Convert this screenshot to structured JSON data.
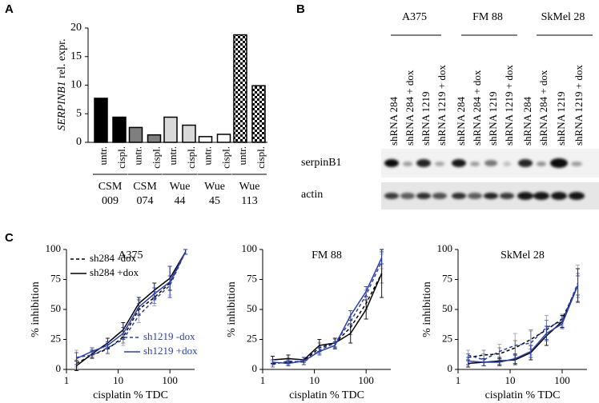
{
  "panel_labels": [
    "A",
    "B",
    "C"
  ],
  "chart_data": [
    {
      "type": "bar",
      "ylabel": {
        "gene": "SERPINB1",
        "text": "rel. expr."
      },
      "categories": [
        "untr.",
        "cispl.",
        "untr.",
        "cispl.",
        "untr.",
        "cispl.",
        "untr.",
        "cispl.",
        "untr.",
        "cispl."
      ],
      "values": [
        7.7,
        4.4,
        2.6,
        1.3,
        4.4,
        3.0,
        1.0,
        1.4,
        18.8,
        9.9
      ],
      "colors": [
        "#000000",
        "#000000",
        "#7f7f7f",
        "#7f7f7f",
        "#d9d9d9",
        "#d9d9d9",
        "#ffffff",
        "#ffffff",
        "checker",
        "checker"
      ],
      "groups": [
        [
          "CSM",
          "009"
        ],
        [
          "CSM",
          "074"
        ],
        [
          "Wue",
          "44"
        ],
        [
          "Wue",
          "45"
        ],
        [
          "Wue",
          "113"
        ]
      ],
      "ylim": [
        0,
        20
      ],
      "yticks": [
        0,
        5,
        10,
        15,
        20
      ]
    },
    {
      "type": "line",
      "title": "A375",
      "xlabel": "cisplatin % TDC",
      "ylabel": "% inhibition",
      "xscale": "log",
      "xlim": [
        1,
        300
      ],
      "xticks": [
        1,
        10,
        100
      ],
      "ylim": [
        0,
        100
      ],
      "yticks": [
        0,
        25,
        50,
        75,
        100
      ],
      "x": [
        1.56,
        3.125,
        6.25,
        12.5,
        25,
        50,
        100,
        200
      ],
      "series": [
        {
          "name": "sh284 -dox",
          "color": "#000000",
          "linestyle": "dashed",
          "legend": "upper left",
          "values": [
            5,
            12,
            17,
            27,
            50,
            60,
            72,
            98
          ],
          "errors": [
            3,
            3,
            4,
            5,
            5,
            5,
            6,
            2
          ]
        },
        {
          "name": "sh284 +dox",
          "color": "#000000",
          "linestyle": "solid",
          "legend": "upper left",
          "values": [
            3,
            13,
            22,
            33,
            55,
            66,
            76,
            98
          ],
          "errors": [
            4,
            3,
            4,
            6,
            5,
            6,
            10,
            2
          ]
        },
        {
          "name": "sh1219 -dox",
          "color": "#2b3fa8",
          "linestyle": "dashed",
          "legend": "lower right",
          "values": [
            10,
            12,
            18,
            25,
            45,
            58,
            70,
            98
          ],
          "errors": [
            6,
            3,
            4,
            5,
            6,
            5,
            8,
            2
          ]
        },
        {
          "name": "sh1219 +dox",
          "color": "#2b3fa8",
          "linestyle": "solid",
          "legend": "lower right",
          "values": [
            9,
            15,
            20,
            30,
            52,
            63,
            73,
            98
          ],
          "errors": [
            5,
            3,
            3,
            5,
            6,
            5,
            13,
            2
          ]
        }
      ]
    },
    {
      "type": "line",
      "title": "FM 88",
      "xlabel": "cisplatin % TDC",
      "ylabel": "% inhibition",
      "xscale": "log",
      "xlim": [
        1,
        300
      ],
      "xticks": [
        1,
        10,
        100
      ],
      "ylim": [
        0,
        100
      ],
      "yticks": [
        0,
        25,
        50,
        75,
        100
      ],
      "x": [
        1.56,
        3.125,
        6.25,
        12.5,
        25,
        50,
        100,
        200
      ],
      "series": [
        {
          "color": "#000000",
          "linestyle": "dashed",
          "values": [
            5,
            6,
            7,
            18,
            22,
            35,
            55,
            80
          ],
          "errors": [
            3,
            2,
            3,
            4,
            4,
            6,
            5,
            8
          ]
        },
        {
          "color": "#000000",
          "linestyle": "solid",
          "values": [
            8,
            9,
            8,
            20,
            22,
            30,
            50,
            80
          ],
          "errors": [
            3,
            3,
            2,
            5,
            4,
            8,
            8,
            20
          ]
        },
        {
          "color": "#2b3fa8",
          "linestyle": "dashed",
          "values": [
            4,
            7,
            6,
            16,
            22,
            40,
            62,
            90
          ],
          "errors": [
            2,
            3,
            2,
            3,
            3,
            4,
            4,
            6
          ]
        },
        {
          "color": "#2b3fa8",
          "linestyle": "solid",
          "values": [
            6,
            5,
            7,
            15,
            20,
            45,
            65,
            93
          ],
          "errors": [
            2,
            2,
            3,
            3,
            3,
            4,
            4,
            5
          ]
        }
      ]
    },
    {
      "type": "line",
      "title": "SkMel 28",
      "xlabel": "cisplatin % TDC",
      "ylabel": "% inhibition",
      "xscale": "log",
      "xlim": [
        1,
        300
      ],
      "xticks": [
        1,
        10,
        100
      ],
      "ylim": [
        0,
        100
      ],
      "yticks": [
        0,
        25,
        50,
        75,
        100
      ],
      "x": [
        1.56,
        3.125,
        6.25,
        12.5,
        25,
        50,
        100,
        200
      ],
      "series": [
        {
          "color": "#000000",
          "linestyle": "dashed",
          "values": [
            10,
            12,
            13,
            18,
            25,
            33,
            42,
            70
          ],
          "errors": [
            3,
            4,
            5,
            6,
            8,
            8,
            4,
            10
          ]
        },
        {
          "color": "#000000",
          "linestyle": "solid",
          "values": [
            5,
            6,
            7,
            8,
            14,
            28,
            40,
            70
          ],
          "errors": [
            3,
            3,
            3,
            4,
            6,
            8,
            5,
            14
          ]
        },
        {
          "color": "#2b3fa8",
          "linestyle": "dashed",
          "values": [
            12,
            8,
            15,
            20,
            22,
            35,
            40,
            72
          ],
          "errors": [
            4,
            5,
            6,
            10,
            10,
            10,
            4,
            15
          ]
        },
        {
          "color": "#2b3fa8",
          "linestyle": "solid",
          "values": [
            7,
            6,
            6,
            9,
            15,
            30,
            38,
            70
          ],
          "errors": [
            3,
            3,
            3,
            4,
            5,
            6,
            4,
            8
          ]
        }
      ]
    }
  ],
  "blot": {
    "cell_lines": [
      "A375",
      "FM 88",
      "SkMel 28"
    ],
    "lanes": [
      "shRNA 284",
      "shRNA 284 + dox",
      "shRNA 1219",
      "shRNA 1219 + dox",
      "shRNA 284",
      "shRNA 284 + dox",
      "shRNA 1219",
      "shRNA 1219 + dox",
      "shRNA 284",
      "shRNA 284 + dox",
      "shRNA 1219",
      "shRNA 1219 + dox"
    ],
    "rows": [
      "serpinB1",
      "actin"
    ]
  }
}
